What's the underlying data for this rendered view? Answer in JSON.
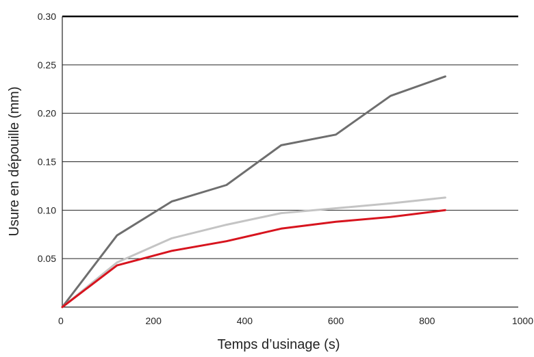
{
  "chart_data": {
    "type": "line",
    "title": "",
    "xlabel": "Temps d’usinage (s)",
    "ylabel": "Usure en dépouille (mm)",
    "xlim": [
      0,
      1000
    ],
    "ylim": [
      0,
      0.3
    ],
    "x_ticks": [
      "0",
      "200",
      "400",
      "600",
      "800",
      "1000"
    ],
    "y_ticks": [
      "0.05",
      "0.10",
      "0.15",
      "0.20",
      "0.25",
      "0.30"
    ],
    "grid": "horizontal",
    "series": [
      {
        "color": "#6e6e6e",
        "points": [
          [
            0,
            0.0
          ],
          [
            120,
            0.074
          ],
          [
            240,
            0.109
          ],
          [
            360,
            0.126
          ],
          [
            480,
            0.167
          ],
          [
            600,
            0.178
          ],
          [
            720,
            0.218
          ],
          [
            840,
            0.238
          ]
        ]
      },
      {
        "color": "#c4c4c4",
        "points": [
          [
            0,
            0.0
          ],
          [
            120,
            0.046
          ],
          [
            240,
            0.071
          ],
          [
            360,
            0.085
          ],
          [
            480,
            0.097
          ],
          [
            600,
            0.102
          ],
          [
            720,
            0.107
          ],
          [
            840,
            0.113
          ]
        ]
      },
      {
        "color": "#d7141e",
        "points": [
          [
            0,
            0.0
          ],
          [
            120,
            0.043
          ],
          [
            240,
            0.058
          ],
          [
            360,
            0.068
          ],
          [
            480,
            0.081
          ],
          [
            600,
            0.088
          ],
          [
            720,
            0.093
          ],
          [
            840,
            0.1
          ]
        ]
      }
    ]
  }
}
